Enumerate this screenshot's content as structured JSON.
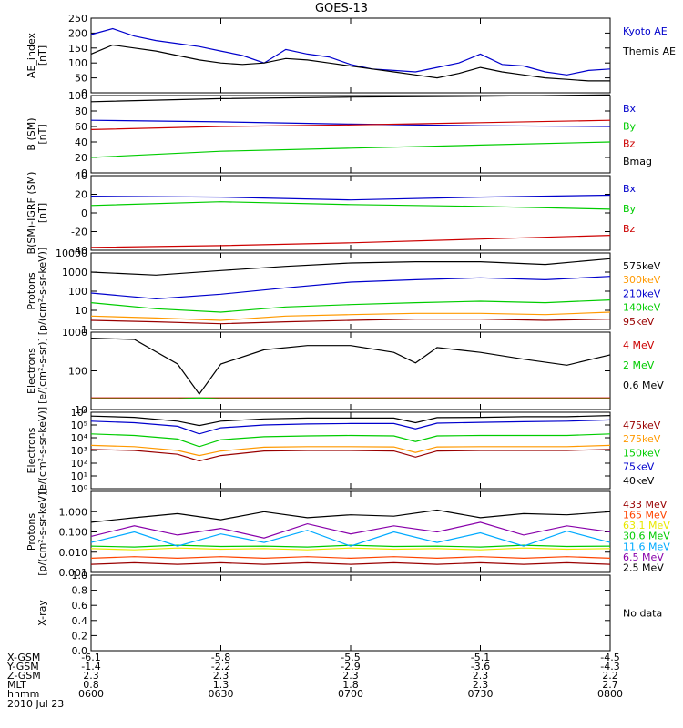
{
  "title": "GOES-13",
  "nodata_text": "No data",
  "date_label": "2010 Jul 23",
  "colors": {
    "black": "#000000",
    "blue": "#0000cc",
    "green": "#00cc00",
    "red": "#cc0000",
    "orange": "#ff9900",
    "darkred": "#990000",
    "cyan": "#00aaff",
    "purple": "#8800aa",
    "yellow": "#e8e800",
    "orangered": "#ff4400"
  },
  "x_axis": {
    "times": [
      "0600",
      "0630",
      "0700",
      "0730",
      "0800"
    ],
    "rows": [
      {
        "label": "X-GSM",
        "values": [
          "-6.1",
          "-5.8",
          "-5.5",
          "-5.1",
          "-4.5"
        ]
      },
      {
        "label": "Y-GSM",
        "values": [
          "-1.4",
          "-2.2",
          "-2.9",
          "-3.6",
          "-4.3"
        ]
      },
      {
        "label": "Z-GSM",
        "values": [
          "2.3",
          "2.3",
          "2.3",
          "2.3",
          "2.2"
        ]
      },
      {
        "label": "MLT",
        "values": [
          "0.8",
          "1.3",
          "1.8",
          "2.3",
          "2.7"
        ]
      },
      {
        "label": "hhmm",
        "values": [
          "0600",
          "0630",
          "0700",
          "0730",
          "0800"
        ]
      }
    ]
  },
  "chart_data": [
    {
      "type": "line",
      "ylabel": [
        "AE_index",
        "[nT]"
      ],
      "yscale": "linear",
      "ylim": [
        0,
        250
      ],
      "yticks": [
        0,
        50,
        100,
        150,
        200,
        250
      ],
      "ticklabels": [
        "0",
        "50",
        "100",
        "150",
        "200",
        "250"
      ],
      "x": [
        0,
        5,
        10,
        15,
        20,
        25,
        30,
        35,
        40,
        45,
        50,
        55,
        60,
        65,
        70,
        75,
        80,
        85,
        90,
        95,
        100,
        105,
        110,
        115,
        120
      ],
      "series": [
        {
          "name": "Kyoto AE",
          "color": "blue",
          "values": [
            195,
            215,
            190,
            175,
            165,
            155,
            140,
            125,
            100,
            145,
            130,
            120,
            95,
            80,
            75,
            70,
            85,
            100,
            130,
            95,
            90,
            70,
            60,
            75,
            80
          ]
        },
        {
          "name": "Themis AE",
          "color": "black",
          "values": [
            130,
            160,
            150,
            140,
            125,
            110,
            100,
            95,
            100,
            115,
            110,
            100,
            90,
            80,
            70,
            60,
            50,
            65,
            85,
            70,
            60,
            50,
            45,
            40,
            40
          ]
        }
      ]
    },
    {
      "type": "line",
      "ylabel": [
        "B (SM)",
        "[nT]"
      ],
      "yscale": "linear",
      "ylim": [
        0,
        100
      ],
      "yticks": [
        0,
        20,
        40,
        60,
        80,
        100
      ],
      "ticklabels": [
        "0",
        "20",
        "40",
        "60",
        "80",
        "100"
      ],
      "x": [
        0,
        30,
        60,
        90,
        120
      ],
      "series": [
        {
          "name": "Bx",
          "color": "blue",
          "values": [
            68,
            66,
            63,
            61,
            60
          ]
        },
        {
          "name": "By",
          "color": "green",
          "values": [
            20,
            28,
            32,
            36,
            40
          ]
        },
        {
          "name": "Bz",
          "color": "red",
          "values": [
            56,
            60,
            62,
            65,
            68
          ]
        },
        {
          "name": "Bmag",
          "color": "black",
          "values": [
            92,
            96,
            98,
            99,
            101
          ]
        }
      ]
    },
    {
      "type": "line",
      "ylabel": [
        "B(SM)-IGRF (SM)",
        "[nT]"
      ],
      "yscale": "linear",
      "ylim": [
        -40,
        40
      ],
      "yticks": [
        -40,
        -20,
        0,
        20,
        40
      ],
      "ticklabels": [
        "-40",
        "-20",
        "0",
        "20",
        "40"
      ],
      "x": [
        0,
        30,
        60,
        90,
        120
      ],
      "series": [
        {
          "name": "Bx",
          "color": "blue",
          "values": [
            18,
            17,
            14,
            17,
            19
          ]
        },
        {
          "name": "By",
          "color": "green",
          "values": [
            8,
            12,
            9,
            7,
            4
          ]
        },
        {
          "name": "Bz",
          "color": "red",
          "values": [
            -37,
            -35,
            -32,
            -28,
            -24
          ]
        }
      ]
    },
    {
      "type": "line",
      "ylabel": [
        "Protons",
        "[p/(cm²-s-sr-keV)]"
      ],
      "yscale": "log",
      "ylim": [
        1,
        10000
      ],
      "yticks": [
        1,
        10,
        100,
        1000,
        10000
      ],
      "ticklabels": [
        "1",
        "10",
        "100",
        "1000",
        "10000"
      ],
      "x": [
        0,
        15,
        30,
        45,
        60,
        75,
        90,
        105,
        120
      ],
      "series": [
        {
          "name": "575keV",
          "color": "black",
          "values": [
            1000,
            700,
            1200,
            2000,
            3000,
            3500,
            3500,
            2500,
            5000
          ]
        },
        {
          "name": "300keV",
          "color": "orange",
          "values": [
            5,
            4,
            3,
            5,
            6,
            7,
            7,
            6,
            8
          ]
        },
        {
          "name": "210keV",
          "color": "blue",
          "values": [
            80,
            40,
            70,
            150,
            300,
            400,
            500,
            400,
            600
          ]
        },
        {
          "name": "140keV",
          "color": "green",
          "values": [
            25,
            12,
            8,
            15,
            20,
            25,
            30,
            25,
            35
          ]
        },
        {
          "name": "95keV",
          "color": "darkred",
          "values": [
            3,
            2.5,
            2,
            2.5,
            3,
            3.5,
            3.5,
            3,
            3.5
          ]
        }
      ]
    },
    {
      "type": "line",
      "ylabel": [
        "Electrons",
        "[e/(cm²-s-sr)]"
      ],
      "yscale": "log",
      "ylim": [
        10,
        1000
      ],
      "yticks": [
        10,
        100,
        1000
      ],
      "ticklabels": [
        "10",
        "100",
        "1000"
      ],
      "x": [
        0,
        10,
        20,
        25,
        30,
        40,
        50,
        60,
        70,
        75,
        80,
        90,
        100,
        110,
        120
      ],
      "series": [
        {
          "name": "4 MeV",
          "color": "red",
          "values": [
            20,
            20,
            20,
            20,
            20,
            20,
            20,
            20,
            20,
            20,
            20,
            20,
            20,
            20,
            20
          ]
        },
        {
          "name": "2 MeV",
          "color": "green",
          "values": [
            19,
            19,
            19,
            20,
            19,
            19,
            19,
            19,
            19,
            19,
            19,
            19,
            19,
            19,
            19
          ]
        },
        {
          "name": "0.6 MeV",
          "color": "black",
          "values": [
            700,
            650,
            150,
            25,
            150,
            350,
            450,
            450,
            300,
            160,
            400,
            300,
            200,
            140,
            260
          ]
        }
      ]
    },
    {
      "type": "line",
      "ylabel": [
        "Electrons",
        "[e/(cm²-s-sr-keV)]"
      ],
      "yscale": "log",
      "ylim": [
        1,
        1000000
      ],
      "yticks": [
        1,
        10,
        100,
        1000,
        10000,
        100000,
        1000000
      ],
      "ticklabels": [
        "10⁰",
        "10¹",
        "10²",
        "10³",
        "10⁴",
        "10⁵",
        "10⁶"
      ],
      "x": [
        0,
        10,
        20,
        25,
        30,
        40,
        50,
        60,
        70,
        75,
        80,
        90,
        100,
        110,
        120
      ],
      "series": [
        {
          "name": "475keV",
          "color": "darkred",
          "values": [
            1200,
            1000,
            500,
            150,
            400,
            900,
            1000,
            1000,
            900,
            300,
            900,
            1000,
            1000,
            1000,
            1200
          ]
        },
        {
          "name": "275keV",
          "color": "orange",
          "values": [
            2500,
            2000,
            1000,
            400,
            900,
            1800,
            2000,
            2000,
            1900,
            700,
            1900,
            2000,
            2000,
            2000,
            2500
          ]
        },
        {
          "name": "150keV",
          "color": "green",
          "values": [
            20000,
            15000,
            8000,
            2000,
            7000,
            12000,
            14000,
            15000,
            14000,
            5000,
            14000,
            15000,
            15000,
            15000,
            20000
          ]
        },
        {
          "name": "75keV",
          "color": "blue",
          "values": [
            200000,
            150000,
            80000,
            20000,
            60000,
            100000,
            120000,
            130000,
            130000,
            50000,
            140000,
            160000,
            180000,
            200000,
            250000
          ]
        },
        {
          "name": "40keV",
          "color": "black",
          "values": [
            500000,
            400000,
            200000,
            90000,
            200000,
            300000,
            350000,
            350000,
            350000,
            150000,
            380000,
            400000,
            450000,
            450000,
            550000
          ]
        }
      ]
    },
    {
      "type": "line",
      "ylabel": [
        "Protons",
        "[p/(cm²-s-sr-keV)]"
      ],
      "yscale": "log",
      "ylim": [
        0.001,
        10
      ],
      "yticks": [
        0.001,
        0.01,
        0.1,
        1
      ],
      "ticklabels": [
        "0.001",
        "0.010",
        "0.100",
        "1.000"
      ],
      "x": [
        0,
        10,
        20,
        30,
        40,
        50,
        60,
        70,
        80,
        90,
        100,
        110,
        120
      ],
      "series": [
        {
          "name": "433 MeV",
          "color": "darkred",
          "values": [
            0.0025,
            0.003,
            0.0025,
            0.003,
            0.0025,
            0.003,
            0.0025,
            0.003,
            0.0025,
            0.003,
            0.0025,
            0.003,
            0.0025
          ]
        },
        {
          "name": "165 MeV",
          "color": "orangered",
          "values": [
            0.005,
            0.006,
            0.005,
            0.006,
            0.005,
            0.006,
            0.005,
            0.006,
            0.005,
            0.006,
            0.005,
            0.006,
            0.005
          ]
        },
        {
          "name": "63.1 MeV",
          "color": "yellow",
          "values": [
            0.015,
            0.013,
            0.016,
            0.014,
            0.015,
            0.013,
            0.016,
            0.014,
            0.015,
            0.013,
            0.016,
            0.014,
            0.015
          ]
        },
        {
          "name": "30.6 MeV",
          "color": "green",
          "values": [
            0.02,
            0.018,
            0.022,
            0.019,
            0.02,
            0.018,
            0.022,
            0.019,
            0.02,
            0.018,
            0.022,
            0.019,
            0.02
          ]
        },
        {
          "name": "11.6 MeV",
          "color": "cyan",
          "values": [
            0.03,
            0.1,
            0.02,
            0.08,
            0.03,
            0.12,
            0.02,
            0.1,
            0.03,
            0.09,
            0.02,
            0.11,
            0.03
          ]
        },
        {
          "name": "6.5 MeV",
          "color": "purple",
          "values": [
            0.06,
            0.2,
            0.07,
            0.15,
            0.05,
            0.25,
            0.08,
            0.2,
            0.1,
            0.3,
            0.07,
            0.2,
            0.1
          ]
        },
        {
          "name": "2.5 MeV",
          "color": "black",
          "values": [
            0.3,
            0.5,
            0.8,
            0.4,
            1.0,
            0.5,
            0.7,
            0.6,
            1.2,
            0.5,
            0.8,
            0.7,
            1.0
          ]
        }
      ]
    },
    {
      "type": "line",
      "ylabel": [
        "X-ray"
      ],
      "yscale": "linear",
      "ylim": [
        0,
        1
      ],
      "yticks": [
        0,
        0.2,
        0.4,
        0.6,
        0.8,
        1.0
      ],
      "ticklabels": [
        "0.0",
        "0.2",
        "0.4",
        "0.6",
        "0.8",
        "1.0"
      ],
      "x": [],
      "series": []
    }
  ]
}
